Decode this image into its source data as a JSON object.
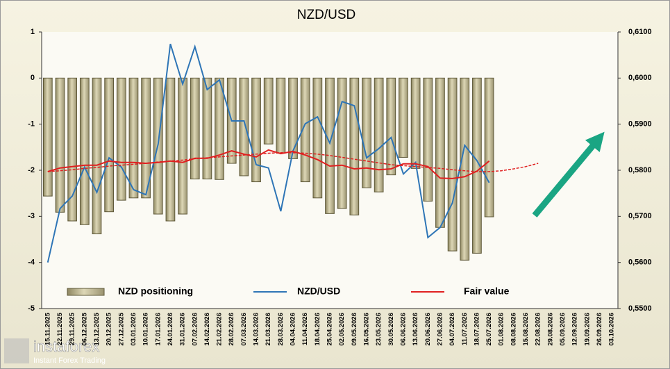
{
  "chart_data": {
    "type": "bar-line",
    "title": "NZD/USD",
    "categories": [
      "15.11.2025",
      "22.11.2025",
      "29.11.2025",
      "06.12.2025",
      "13.12.2025",
      "20.12.2025",
      "27.12.2025",
      "03.01.2026",
      "10.01.2026",
      "17.01.2026",
      "24.01.2026",
      "31.01.2026",
      "07.02.2026",
      "14.02.2026",
      "21.02.2026",
      "28.02.2026",
      "07.03.2026",
      "14.03.2026",
      "21.03.2026",
      "28.03.2026",
      "04.04.2026",
      "11.04.2026",
      "18.04.2026",
      "25.04.2026",
      "02.05.2026",
      "09.05.2026",
      "16.05.2026",
      "23.05.2026",
      "30.05.2026",
      "06.06.2026",
      "13.06.2026",
      "20.06.2026",
      "27.06.2026",
      "04.07.2026",
      "11.07.2026",
      "18.07.2026",
      "25.07.2026",
      "01.08.2026",
      "08.08.2026",
      "15.08.2026",
      "22.08.2026",
      "29.08.2026",
      "05.09.2026",
      "12.09.2026",
      "19.09.2026",
      "26.09.2026",
      "03.10.2026"
    ],
    "series": [
      {
        "name": "NZD positioning",
        "color": "#c9c29c",
        "axis": "y",
        "kind": "bar",
        "values": [
          -2.56,
          -2.91,
          -3.1,
          -3.18,
          -3.38,
          -2.9,
          -2.65,
          -2.6,
          -2.6,
          -2.95,
          -3.1,
          -2.95,
          -2.19,
          -2.19,
          -2.2,
          -1.85,
          -2.12,
          -2.25,
          -1.43,
          -1.63,
          -1.75,
          -2.25,
          -2.6,
          -2.94,
          -2.83,
          -2.97,
          -2.38,
          -2.47,
          -2.1,
          -1.72,
          -1.96,
          -2.67,
          -3.24,
          -3.75,
          -3.95,
          -3.8,
          -3.01,
          null,
          null,
          null,
          null,
          null,
          null,
          null,
          null,
          null,
          null
        ]
      },
      {
        "name": "NZD/USD",
        "color": "#2e75b6",
        "axis": "y2",
        "kind": "line",
        "values": [
          0.56,
          0.5717,
          0.5744,
          0.5807,
          0.5752,
          0.5827,
          0.5807,
          0.5758,
          0.5747,
          0.5857,
          0.6074,
          0.5987,
          0.6068,
          0.5975,
          0.5996,
          0.5907,
          0.5907,
          0.5812,
          0.5805,
          0.5711,
          0.5842,
          0.5901,
          0.5916,
          0.5859,
          0.5949,
          0.594,
          0.5827,
          0.5847,
          0.5871,
          0.5792,
          0.5817,
          0.5654,
          0.5676,
          0.5729,
          0.5854,
          0.5821,
          0.5773,
          null,
          null,
          null,
          null,
          null,
          null,
          null,
          null,
          null,
          null
        ]
      },
      {
        "name": "Fair value",
        "color": "#e02020",
        "axis": "y2",
        "kind": "line",
        "values": [
          0.5797,
          0.5805,
          0.5808,
          0.5811,
          0.5811,
          0.582,
          0.5817,
          0.5817,
          0.5815,
          0.5817,
          0.582,
          0.5817,
          0.5826,
          0.5826,
          0.5833,
          0.5842,
          0.5835,
          0.5829,
          0.5844,
          0.5836,
          0.5841,
          0.5833,
          0.5823,
          0.5809,
          0.5811,
          0.5803,
          0.5805,
          0.5801,
          0.5803,
          0.5814,
          0.5814,
          0.5808,
          0.5783,
          0.5782,
          0.5786,
          0.5798,
          0.582,
          null,
          null,
          null,
          null,
          null,
          null,
          null,
          null,
          null,
          null
        ]
      }
    ],
    "trend": {
      "color": "#e02020",
      "axis": "y2",
      "values": [
        0.5797,
        0.5799,
        0.5801,
        0.5804,
        0.5806,
        0.5809,
        0.5811,
        0.5813,
        0.5815,
        0.5818,
        0.582,
        0.5822,
        0.5825,
        0.5827,
        0.5829,
        0.5831,
        0.5833,
        0.5835,
        0.5837,
        0.5838,
        0.5838,
        0.5837,
        0.5835,
        0.5832,
        0.5828,
        0.5824,
        0.582,
        0.5816,
        0.5812,
        0.581,
        0.5808,
        0.5806,
        0.5804,
        0.5801,
        0.5799,
        0.5797,
        0.5797,
        0.5799,
        0.5803,
        0.5808,
        0.5815,
        null,
        null,
        null,
        null,
        null,
        null
      ]
    },
    "ylim": [
      -5,
      1
    ],
    "yticks": [
      -5,
      -4,
      -3,
      -2,
      -1,
      0,
      1
    ],
    "y2lim": [
      0.55,
      0.61
    ],
    "y2ticks": [
      {
        "value": 0.55,
        "label": "0,5500"
      },
      {
        "value": 0.56,
        "label": "0,5600"
      },
      {
        "value": 0.57,
        "label": "0,5700"
      },
      {
        "value": 0.58,
        "label": "0,5800"
      },
      {
        "value": 0.59,
        "label": "0,5900"
      },
      {
        "value": 0.6,
        "label": "0,6000"
      },
      {
        "value": 0.61,
        "label": "0,6100"
      }
    ],
    "watermark": {
      "brand": "instaforex",
      "tagline": "Instant Forex Trading"
    }
  }
}
